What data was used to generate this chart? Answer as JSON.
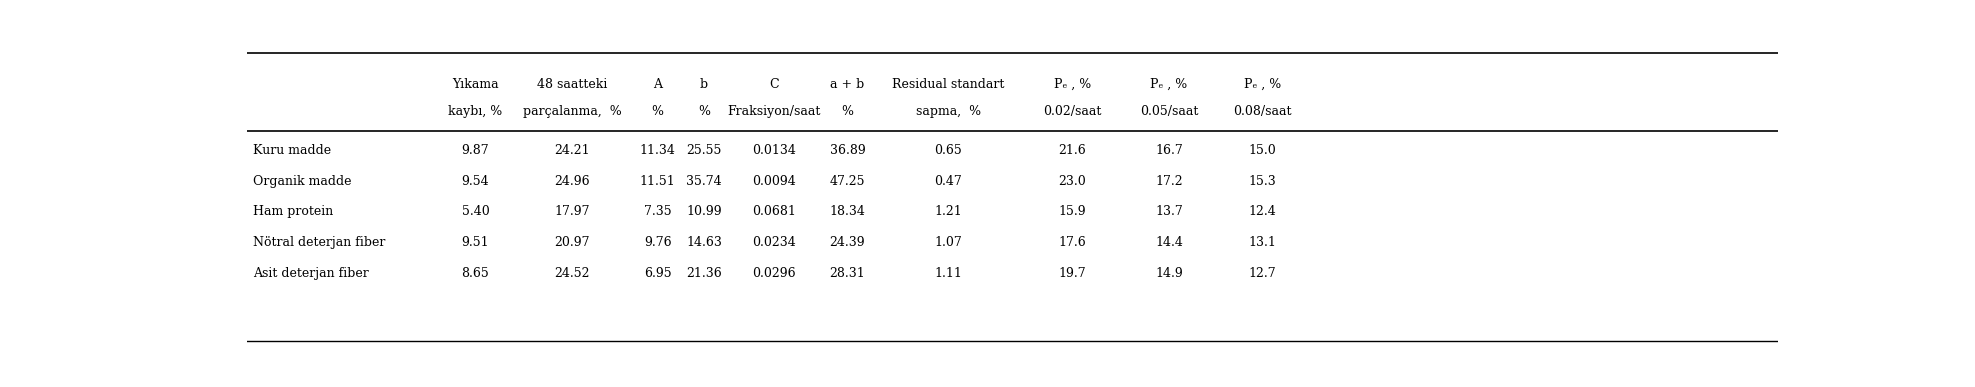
{
  "rows": [
    [
      "Kuru madde",
      "9.87",
      "24.21",
      "11.34",
      "25.55",
      "0.0134",
      "36.89",
      "0.65",
      "21.6",
      "16.7",
      "15.0"
    ],
    [
      "Organik madde",
      "9.54",
      "24.96",
      "11.51",
      "35.74",
      "0.0094",
      "47.25",
      "0.47",
      "23.0",
      "17.2",
      "15.3"
    ],
    [
      "Ham protein",
      "5.40",
      "17.97",
      "7.35",
      "10.99",
      "0.0681",
      "18.34",
      "1.21",
      "15.9",
      "13.7",
      "12.4"
    ],
    [
      "Nötral deterjan fiber",
      "9.51",
      "20.97",
      "9.76",
      "14.63",
      "0.0234",
      "24.39",
      "1.07",
      "17.6",
      "14.4",
      "13.1"
    ],
    [
      "Asit deterjan fiber",
      "8.65",
      "24.52",
      "6.95",
      "21.36",
      "0.0296",
      "28.31",
      "1.11",
      "19.7",
      "14.9",
      "12.7"
    ]
  ],
  "header_line1": [
    "Yıkama",
    "48 saatteki",
    "A",
    "b",
    "C",
    "a + b",
    "Residual standart",
    "Pₑ , %",
    "Pₑ , %",
    "Pₑ , %"
  ],
  "header_line2": [
    "kaybı, %",
    "parçalanma,  %",
    "%",
    "%",
    "Fraksiyon/saat",
    "%",
    "sapma,  %",
    "0.02/saat",
    "0.05/saat",
    "0.08/saat"
  ],
  "bg_color": "#ffffff",
  "text_color": "#000000",
  "font_size": 9.0,
  "header_font_size": 9.0
}
